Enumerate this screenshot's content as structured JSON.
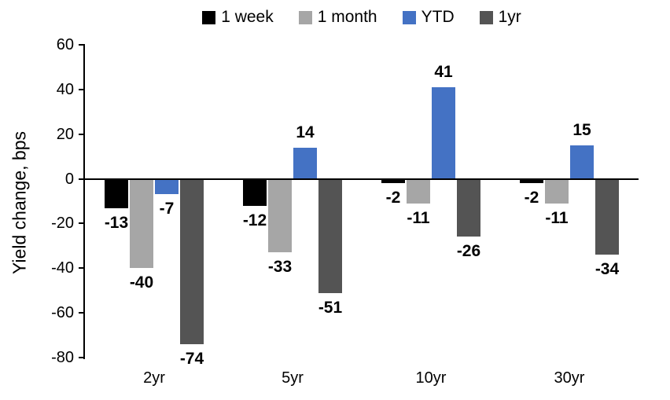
{
  "chart_data": {
    "type": "bar",
    "title": "",
    "ylabel": "Yield change, bps",
    "xlabel": "",
    "ylim": [
      -80,
      60
    ],
    "yticks": [
      60,
      40,
      20,
      0,
      -20,
      -40,
      -60,
      -80
    ],
    "grid": false,
    "legend_position": "top",
    "value_labels": "outside-end, bold",
    "categories": [
      "2yr",
      "5yr",
      "10yr",
      "30yr"
    ],
    "series": [
      {
        "name": "1 week",
        "color": "#000000",
        "values": [
          -13,
          -12,
          -2,
          -2
        ]
      },
      {
        "name": "1 month",
        "color": "#a6a6a6",
        "values": [
          -40,
          -33,
          -11,
          -11
        ]
      },
      {
        "name": "YTD",
        "color": "#4472c4",
        "values": [
          -7,
          14,
          41,
          15
        ]
      },
      {
        "name": "1yr",
        "color": "#545454",
        "values": [
          -74,
          -51,
          -26,
          -34
        ]
      }
    ],
    "colors": {
      "axis": "#000000",
      "text": "#000000",
      "background": "#ffffff"
    }
  }
}
